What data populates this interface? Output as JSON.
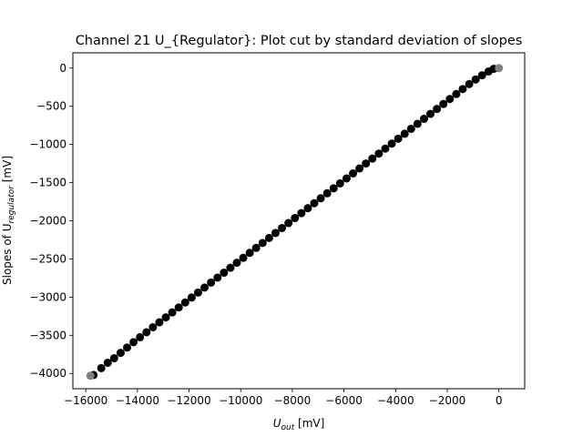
{
  "chart_data": {
    "type": "scatter",
    "title": "Channel 21 U_{Regulator}: Plot cut by standard deviation of slopes",
    "xlabel": {
      "main": "U",
      "sub": "out",
      "unit": " [mV]"
    },
    "ylabel": {
      "main": "Slopes of U",
      "sub": "regulator",
      "unit": " [mV]"
    },
    "xlim": [
      -16500,
      1000
    ],
    "ylim": [
      -4200,
      200
    ],
    "xticks": [
      -16000,
      -14000,
      -12000,
      -10000,
      -8000,
      -6000,
      -4000,
      -2000,
      0
    ],
    "xtick_labels": [
      "−16000",
      "−14000",
      "−12000",
      "−10000",
      "−8000",
      "−6000",
      "−4000",
      "−2000",
      "0"
    ],
    "yticks": [
      0,
      -500,
      -1000,
      -1500,
      -2000,
      -2500,
      -3000,
      -3500,
      -4000
    ],
    "ytick_labels": [
      "0",
      "−500",
      "−1000",
      "−1500",
      "−2000",
      "−2500",
      "−3000",
      "−3500",
      "−4000"
    ],
    "grid": false,
    "series": [
      {
        "color": "#000000",
        "marker": "circle",
        "x": [
          -15700,
          -15400,
          -15150,
          -14900,
          -14650,
          -14400,
          -14150,
          -13900,
          -13650,
          -13400,
          -13150,
          -12900,
          -12650,
          -12400,
          -12150,
          -11900,
          -11650,
          -11400,
          -11150,
          -10900,
          -10650,
          -10400,
          -10150,
          -9900,
          -9650,
          -9400,
          -9150,
          -8900,
          -8650,
          -8400,
          -8150,
          -7900,
          -7650,
          -7400,
          -7150,
          -6900,
          -6650,
          -6400,
          -6150,
          -5900,
          -5650,
          -5400,
          -5150,
          -4900,
          -4650,
          -4400,
          -4150,
          -3900,
          -3650,
          -3400,
          -3150,
          -2900,
          -2650,
          -2400,
          -2150,
          -1900,
          -1650,
          -1400,
          -1150,
          -900,
          -650,
          -400,
          -200
        ],
        "y": [
          -4020,
          -3930,
          -3860,
          -3800,
          -3730,
          -3660,
          -3590,
          -3525,
          -3460,
          -3395,
          -3330,
          -3265,
          -3200,
          -3135,
          -3070,
          -3005,
          -2940,
          -2875,
          -2810,
          -2745,
          -2680,
          -2615,
          -2550,
          -2485,
          -2420,
          -2355,
          -2290,
          -2225,
          -2160,
          -2095,
          -2030,
          -1965,
          -1900,
          -1835,
          -1770,
          -1705,
          -1640,
          -1575,
          -1510,
          -1445,
          -1380,
          -1315,
          -1250,
          -1185,
          -1120,
          -1055,
          -990,
          -925,
          -860,
          -795,
          -730,
          -665,
          -600,
          -535,
          -470,
          -405,
          -340,
          -275,
          -210,
          -150,
          -95,
          -45,
          -10
        ]
      },
      {
        "color": "#808080",
        "marker": "circle",
        "x": [
          -15820,
          0
        ],
        "y": [
          -4030,
          0
        ]
      }
    ]
  }
}
